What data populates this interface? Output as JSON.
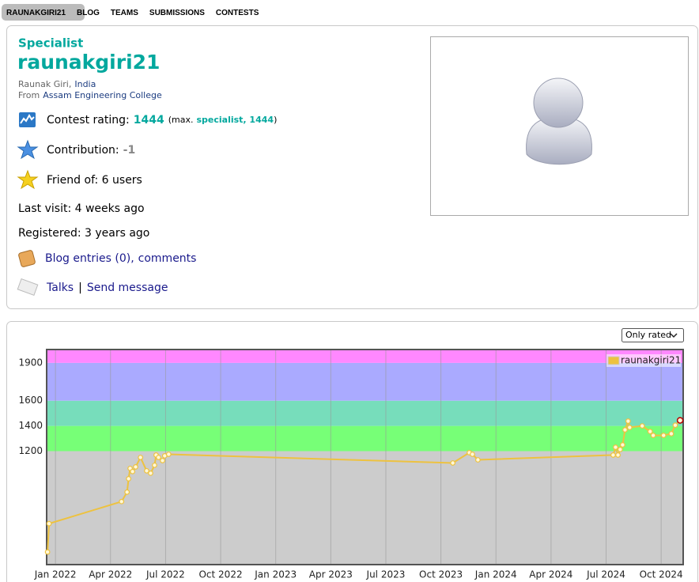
{
  "nav": {
    "items": [
      "RAUNAKGIRI21",
      "BLOG",
      "TEAMS",
      "SUBMISSIONS",
      "CONTESTS"
    ]
  },
  "profile": {
    "rank": "Specialist",
    "handle": "raunakgiri21",
    "name": "Raunak Giri,",
    "country": "India",
    "from_label": "From",
    "organization": "Assam Engineering College",
    "rating_label": "Contest rating:",
    "rating": "1444",
    "max_open": "(max.",
    "max_rank": "specialist, 1444",
    "max_close": ")",
    "contribution_label": "Contribution:",
    "contribution": "-1",
    "friends": "Friend of: 6 users",
    "last_visit": "Last visit: 4 weeks ago",
    "registered": "Registered: 3 years ago",
    "blog": "Blog entries (0),",
    "comments": "comments",
    "talks": "Talks",
    "separator": "|",
    "send": "Send message"
  },
  "filter": "Only rated",
  "chart_data": {
    "type": "line",
    "series": [
      {
        "name": "raunakgiri21",
        "color": "#edc240",
        "x": [
          2021.964,
          2021.971,
          2022.3,
          2022.325,
          2022.332,
          2022.339,
          2022.35,
          2022.364,
          2022.386,
          2022.414,
          2022.432,
          2022.45,
          2022.457,
          2022.468,
          2022.486,
          2022.496,
          2022.514,
          2023.804,
          2023.879,
          2023.893,
          2023.918,
          2024.532,
          2024.543,
          2024.554,
          2024.564,
          2024.575,
          2024.586,
          2024.6,
          2024.607,
          2024.664,
          2024.7,
          2024.714,
          2024.761,
          2024.796,
          2024.814,
          2024.836
        ],
        "values": [
          400,
          625,
          800,
          875,
          981,
          1063,
          1038,
          1075,
          1150,
          1044,
          1025,
          1088,
          1169,
          1150,
          1125,
          1163,
          1175,
          1106,
          1188,
          1175,
          1131,
          1169,
          1231,
          1169,
          1213,
          1250,
          1369,
          1438,
          1388,
          1400,
          1356,
          1325,
          1325,
          1338,
          1406,
          1444
        ]
      }
    ],
    "xlim": [
      2021.96,
      2024.85
    ],
    "xticks": [
      {
        "value": 2022.0,
        "label": "Jan 2022"
      },
      {
        "value": 2022.25,
        "label": "Apr 2022"
      },
      {
        "value": 2022.5,
        "label": "Jul 2022"
      },
      {
        "value": 2022.75,
        "label": "Oct 2022"
      },
      {
        "value": 2023.0,
        "label": "Jan 2023"
      },
      {
        "value": 2023.25,
        "label": "Apr 2023"
      },
      {
        "value": 2023.5,
        "label": "Jul 2023"
      },
      {
        "value": 2023.75,
        "label": "Oct 2023"
      },
      {
        "value": 2024.0,
        "label": "Jan 2024"
      },
      {
        "value": 2024.25,
        "label": "Apr 2024"
      },
      {
        "value": 2024.5,
        "label": "Jul 2024"
      },
      {
        "value": 2024.75,
        "label": "Oct 2024"
      }
    ],
    "ylim": [
      300,
      2006
    ],
    "yticks": [
      1200,
      1400,
      1600,
      1900
    ],
    "bands": [
      {
        "from": 300,
        "to": 1200,
        "color": "#cccccc"
      },
      {
        "from": 1200,
        "to": 1400,
        "color": "#77ff77"
      },
      {
        "from": 1400,
        "to": 1600,
        "color": "#77ddbb"
      },
      {
        "from": 1600,
        "to": 1900,
        "color": "#aaaaff"
      },
      {
        "from": 1900,
        "to": 2006,
        "color": "#ff88ff"
      }
    ],
    "grid": true,
    "legend": "top-right",
    "highlight_last": true
  }
}
